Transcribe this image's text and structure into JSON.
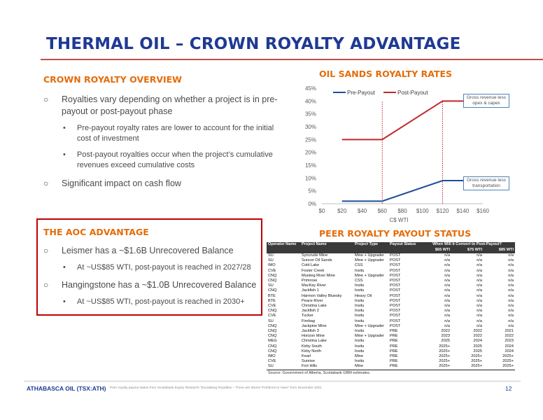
{
  "slide": {
    "title": "THERMAL OIL – CROWN ROYALTY ADVANTAGE",
    "page_number": "12"
  },
  "overview": {
    "heading": "CROWN ROYALTY OVERVIEW",
    "bullets": [
      {
        "text": "Royalties vary depending on whether a project is in pre-payout or post-payout phase",
        "sub": [
          "Pre-payout royalty rates are lower to account for the initial cost of investment",
          "Post-payout royalties occur when the project’s cumulative revenues exceed cumulative costs"
        ]
      },
      {
        "text": "Significant impact on cash flow",
        "sub": []
      }
    ]
  },
  "aoc": {
    "heading": "THE AOC ADVANTAGE",
    "bullets": [
      {
        "text": "Leismer has a ~$1.6B Unrecovered Balance",
        "sub": [
          "At ~US$85 WTI, post-payout is reached in 2027/28"
        ]
      },
      {
        "text": "Hangingstone has a ~$1.0B Unrecovered Balance",
        "sub": [
          "At ~US$85 WTI, post-payout is reached in 2030+"
        ]
      }
    ]
  },
  "chart_data": {
    "type": "line",
    "title": "OIL SANDS ROYALTY RATES",
    "xlabel": "C$ WTI",
    "ylabel": "",
    "xlim": [
      0,
      160
    ],
    "ylim": [
      0,
      45
    ],
    "x_ticks": [
      "$0",
      "$20",
      "$40",
      "$60",
      "$80",
      "$100",
      "$120",
      "$140",
      "$160"
    ],
    "y_ticks": [
      "0%",
      "5%",
      "10%",
      "15%",
      "20%",
      "25%",
      "30%",
      "35%",
      "40%",
      "45%"
    ],
    "grid": false,
    "legend_position": "top-left",
    "series": [
      {
        "name": "Pre-Payout",
        "color": "#1f4e9a",
        "x": [
          20,
          60,
          120,
          160
        ],
        "y": [
          1,
          1,
          9,
          9
        ]
      },
      {
        "name": "Post-Payout",
        "color": "#c0272d",
        "x": [
          20,
          60,
          120,
          160
        ],
        "y": [
          25,
          25,
          40,
          40
        ]
      }
    ],
    "reference_lines_x": [
      60,
      120
    ],
    "annotations": [
      {
        "text": "Gross revenue less opex & capex",
        "series": "Post-Payout"
      },
      {
        "text": "Gross revenue less transportation",
        "series": "Pre-Payout"
      }
    ]
  },
  "peer": {
    "heading": "PEER ROYALTY PAYOUT STATUS",
    "headers": [
      "Operator Name",
      "Project Name",
      "Project Type",
      "Payout Status",
      "When Will it Convert to Post-Payout?"
    ],
    "price_headers": [
      "$65 WTI",
      "$75 WTI",
      "$85 WTI"
    ],
    "rows": [
      [
        "SU",
        "Syncrude Mine",
        "Mine + Upgrader",
        "POST",
        "n/a",
        "n/a",
        "n/a"
      ],
      [
        "SU",
        "Suncor Oil Sands",
        "Mine + Upgrader",
        "POST",
        "n/a",
        "n/a",
        "n/a"
      ],
      [
        "IMO",
        "Cold Lake",
        "CSS",
        "POST",
        "n/a",
        "n/a",
        "n/a"
      ],
      [
        "CVE",
        "Foster Creek",
        "Insitu",
        "POST",
        "n/a",
        "n/a",
        "n/a"
      ],
      [
        "CNQ",
        "Muskeg River Mine",
        "Mine + Upgrader",
        "POST",
        "n/a",
        "n/a",
        "n/a"
      ],
      [
        "CNQ",
        "Primrose",
        "CSS",
        "POST",
        "n/a",
        "n/a",
        "n/a"
      ],
      [
        "SU",
        "MacKay River",
        "Insitu",
        "POST",
        "n/a",
        "n/a",
        "n/a"
      ],
      [
        "CNQ",
        "Jackfish 1",
        "Insitu",
        "POST",
        "n/a",
        "n/a",
        "n/a"
      ],
      [
        "BTE",
        "Harmon Valley Bluesky",
        "Heavy Oil",
        "POST",
        "n/a",
        "n/a",
        "n/a"
      ],
      [
        "BTE",
        "Peace River",
        "Insitu",
        "POST",
        "n/a",
        "n/a",
        "n/a"
      ],
      [
        "CVE",
        "Christina Lake",
        "Insitu",
        "POST",
        "n/a",
        "n/a",
        "n/a"
      ],
      [
        "CNQ",
        "Jackfish 2",
        "Insitu",
        "POST",
        "n/a",
        "n/a",
        "n/a"
      ],
      [
        "CVE",
        "Tucker",
        "Insitu",
        "POST",
        "n/a",
        "n/a",
        "n/a"
      ],
      [
        "SU",
        "Firebag",
        "Insitu",
        "POST",
        "n/a",
        "n/a",
        "n/a"
      ],
      [
        "CNQ",
        "Jackpine Mine",
        "Mine + Upgrader",
        "POST",
        "n/a",
        "n/a",
        "n/a"
      ],
      [
        "CNQ",
        "Jackfish 3",
        "Insitu",
        "PRE",
        "2022",
        "2022",
        "2021"
      ],
      [
        "CNQ",
        "Horizon Mine",
        "Mine + Upgrader",
        "PRE",
        "2023",
        "2022",
        "2022"
      ],
      [
        "MEG",
        "Christina Lake",
        "Insitu",
        "PRE",
        "2025",
        "2024",
        "2023"
      ],
      [
        "CNQ",
        "Kirby South",
        "Insitu",
        "PRE",
        "2025+",
        "2025",
        "2024"
      ],
      [
        "CNQ",
        "Kirby North",
        "Insitu",
        "PRE",
        "2025+",
        "2025",
        "2024"
      ],
      [
        "IMO",
        "Kearl",
        "Mine",
        "PRE",
        "2025+",
        "2025+",
        "2025+"
      ],
      [
        "CVE",
        "Sunrise",
        "Insitu",
        "PRE",
        "2025+",
        "2025+",
        "2025+"
      ],
      [
        "SU",
        "Fort Hills",
        "Mine",
        "PRE",
        "2025+",
        "2025+",
        "2025+"
      ]
    ],
    "source": "Source: Government of Alberta, Scotiabank GBM estimates."
  },
  "footer": {
    "company": "ATHABASCA OIL (TSX:ATH)",
    "note": "Peer royalty payout status from Scotiabank Equity Research “Escalating Royalties – There are Worse Problems to Have” from November 2021"
  }
}
